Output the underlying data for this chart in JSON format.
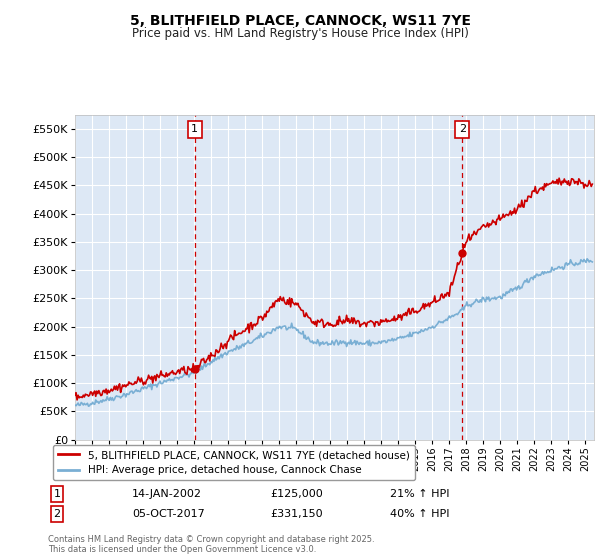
{
  "title": "5, BLITHFIELD PLACE, CANNOCK, WS11 7YE",
  "subtitle": "Price paid vs. HM Land Registry's House Price Index (HPI)",
  "ylabel_ticks": [
    "£0",
    "£50K",
    "£100K",
    "£150K",
    "£200K",
    "£250K",
    "£300K",
    "£350K",
    "£400K",
    "£450K",
    "£500K",
    "£550K"
  ],
  "ytick_vals": [
    0,
    50000,
    100000,
    150000,
    200000,
    250000,
    300000,
    350000,
    400000,
    450000,
    500000,
    550000
  ],
  "ylim": [
    0,
    575000
  ],
  "xlim_start": 1995.0,
  "xlim_end": 2025.5,
  "xtick_years": [
    1995,
    1996,
    1997,
    1998,
    1999,
    2000,
    2001,
    2002,
    2003,
    2004,
    2005,
    2006,
    2007,
    2008,
    2009,
    2010,
    2011,
    2012,
    2013,
    2014,
    2015,
    2016,
    2017,
    2018,
    2019,
    2020,
    2021,
    2022,
    2023,
    2024,
    2025
  ],
  "sale1_x": 2002.04,
  "sale1_y": 125000,
  "sale1_label": "1",
  "sale2_x": 2017.76,
  "sale2_y": 331150,
  "sale2_label": "2",
  "legend_line1": "5, BLITHFIELD PLACE, CANNOCK, WS11 7YE (detached house)",
  "legend_line2": "HPI: Average price, detached house, Cannock Chase",
  "ann1_box": "1",
  "ann1_date": "14-JAN-2002",
  "ann1_price": "£125,000",
  "ann1_hpi": "21% ↑ HPI",
  "ann2_box": "2",
  "ann2_date": "05-OCT-2017",
  "ann2_price": "£331,150",
  "ann2_hpi": "40% ↑ HPI",
  "footer": "Contains HM Land Registry data © Crown copyright and database right 2025.\nThis data is licensed under the Open Government Licence v3.0.",
  "price_color": "#cc0000",
  "hpi_color": "#7aafd4",
  "bg_color": "#dde8f5",
  "grid_color": "#ffffff",
  "vline_color": "#cc0000",
  "box_color": "#cc0000",
  "fig_bg": "#ffffff"
}
